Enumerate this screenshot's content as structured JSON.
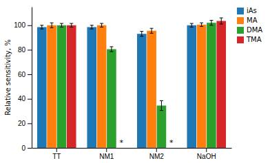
{
  "chart_data": {
    "type": "bar",
    "ylabel": "Relative sensitivity, %",
    "categories": [
      "TT",
      "NM1",
      "NM2",
      "NaOH"
    ],
    "series": [
      {
        "name": "iAs",
        "values": [
          98.5,
          98.5,
          93.0,
          100.0
        ],
        "errors": [
          1.5,
          1.5,
          2.0,
          1.5
        ]
      },
      {
        "name": "MA",
        "values": [
          100.0,
          100.0,
          95.5,
          100.5
        ],
        "errors": [
          2.0,
          1.5,
          2.0,
          1.5
        ]
      },
      {
        "name": "DMA",
        "values": [
          100.0,
          80.5,
          34.5,
          102.0
        ],
        "errors": [
          1.5,
          2.0,
          4.0,
          2.0
        ]
      },
      {
        "name": "TMA",
        "values": [
          100.0,
          0.0,
          0.0,
          103.5
        ],
        "errors": [
          1.5,
          null,
          null,
          2.5
        ]
      }
    ],
    "annotations": [
      {
        "text": "*",
        "category": "NM1",
        "series": "TMA",
        "y": 1.5
      },
      {
        "text": "*",
        "category": "NM2",
        "series": "TMA",
        "y": 1.5
      }
    ],
    "ylim": [
      0,
      115
    ],
    "yticks": [
      0,
      20,
      40,
      60,
      80,
      100
    ],
    "legend": "upper right"
  }
}
